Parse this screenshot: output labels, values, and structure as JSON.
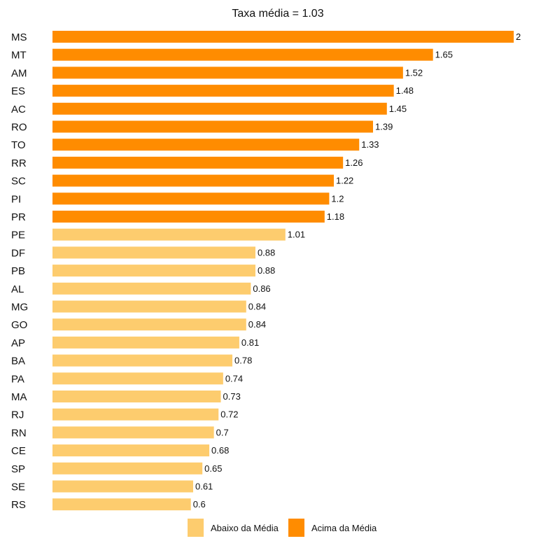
{
  "chart_data": {
    "type": "bar",
    "orientation": "horizontal",
    "title": "Taxa média = 1.03",
    "mean": 1.03,
    "xlim": [
      0,
      2
    ],
    "categories": [
      "MS",
      "MT",
      "AM",
      "ES",
      "AC",
      "RO",
      "TO",
      "RR",
      "SC",
      "PI",
      "PR",
      "PE",
      "DF",
      "PB",
      "AL",
      "MG",
      "GO",
      "AP",
      "BA",
      "PA",
      "MA",
      "RJ",
      "RN",
      "CE",
      "SP",
      "SE",
      "RS"
    ],
    "values": [
      2,
      1.65,
      1.52,
      1.48,
      1.45,
      1.39,
      1.33,
      1.26,
      1.22,
      1.2,
      1.18,
      1.01,
      0.88,
      0.88,
      0.86,
      0.84,
      0.84,
      0.81,
      0.78,
      0.74,
      0.73,
      0.72,
      0.7,
      0.68,
      0.65,
      0.61,
      0.6
    ],
    "value_labels": [
      "2",
      "1.65",
      "1.52",
      "1.48",
      "1.45",
      "1.39",
      "1.33",
      "1.26",
      "1.22",
      "1.2",
      "1.18",
      "1.01",
      "0.88",
      "0.88",
      "0.86",
      "0.84",
      "0.84",
      "0.81",
      "0.78",
      "0.74",
      "0.73",
      "0.72",
      "0.7",
      "0.68",
      "0.65",
      "0.61",
      "0.6"
    ],
    "groups": [
      "acima",
      "acima",
      "acima",
      "acima",
      "acima",
      "acima",
      "acima",
      "acima",
      "acima",
      "acima",
      "acima",
      "abaixo",
      "abaixo",
      "abaixo",
      "abaixo",
      "abaixo",
      "abaixo",
      "abaixo",
      "abaixo",
      "abaixo",
      "abaixo",
      "abaixo",
      "abaixo",
      "abaixo",
      "abaixo",
      "abaixo",
      "abaixo"
    ],
    "legend": [
      {
        "key": "abaixo",
        "label": "Abaixo da Média",
        "color": "#FDCC6E"
      },
      {
        "key": "acima",
        "label": "Acima da Média",
        "color": "#FF8C00"
      }
    ],
    "legend_position": "bottom"
  }
}
